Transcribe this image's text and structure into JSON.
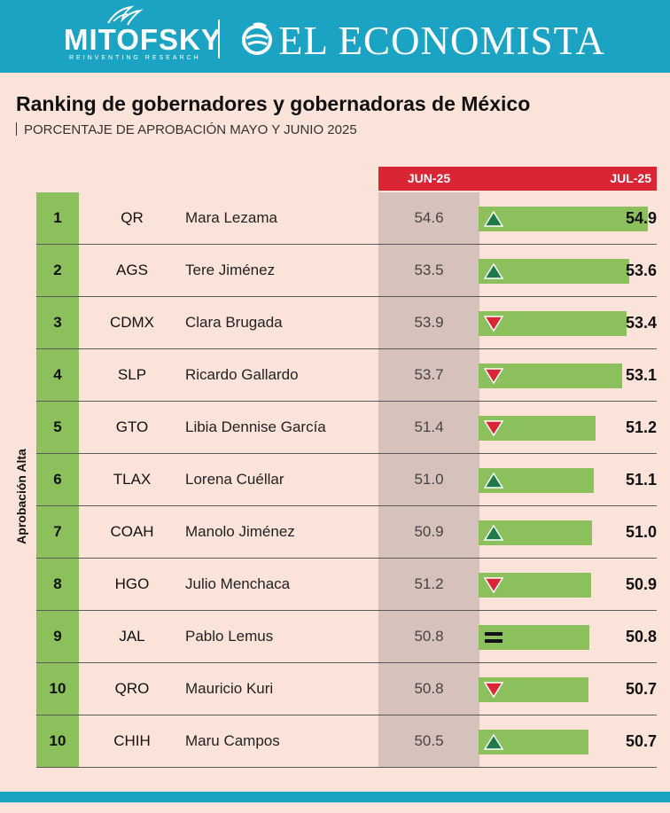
{
  "header": {
    "brand1": "MITOFSKY",
    "brand1_tagline": "REINVENTING RESEARCH",
    "brand2": "EL ECONOMISTA",
    "background": "#1aa3c2"
  },
  "title": "Ranking de gobernadores y gobernadoras de México",
  "subtitle": "PORCENTAJE DE APROBACIÓN MAYO Y JUNIO 2025",
  "side_label": "Aprobación Alta",
  "colors": {
    "accent_red": "#d92534",
    "bar_green": "#8cc05c",
    "up": "#1f7a4a",
    "down": "#d92534"
  },
  "chart_data": {
    "type": "bar",
    "title": "Ranking de gobernadores y gobernadoras de México",
    "subtitle": "PORCENTAJE DE APROBACIÓN MAYO Y JUNIO 2025",
    "series_labels": [
      "JUN-25",
      "JUL-25"
    ],
    "xlim": [
      0,
      54.9
    ],
    "rows": [
      {
        "rank": "1",
        "state": "QR",
        "name": "Mara Lezama",
        "jun": "54.6",
        "jul": "54.9",
        "value": 54.9,
        "trend": "up"
      },
      {
        "rank": "2",
        "state": "AGS",
        "name": "Tere Jiménez",
        "jun": "53.5",
        "jul": "53.6",
        "value": 53.6,
        "trend": "up"
      },
      {
        "rank": "3",
        "state": "CDMX",
        "name": "Clara Brugada",
        "jun": "53.9",
        "jul": "53.4",
        "value": 53.4,
        "trend": "down"
      },
      {
        "rank": "4",
        "state": "SLP",
        "name": "Ricardo Gallardo",
        "jun": "53.7",
        "jul": "53.1",
        "value": 53.1,
        "trend": "down"
      },
      {
        "rank": "5",
        "state": "GTO",
        "name": "Libia Dennise García",
        "jun": "51.4",
        "jul": "51.2",
        "value": 51.2,
        "trend": "down"
      },
      {
        "rank": "6",
        "state": "TLAX",
        "name": "Lorena Cuéllar",
        "jun": "51.0",
        "jul": "51.1",
        "value": 51.1,
        "trend": "up"
      },
      {
        "rank": "7",
        "state": "COAH",
        "name": "Manolo Jiménez",
        "jun": "50.9",
        "jul": "51.0",
        "value": 51.0,
        "trend": "up"
      },
      {
        "rank": "8",
        "state": "HGO",
        "name": "Julio Menchaca",
        "jun": "51.2",
        "jul": "50.9",
        "value": 50.9,
        "trend": "down"
      },
      {
        "rank": "9",
        "state": "JAL",
        "name": "Pablo Lemus",
        "jun": "50.8",
        "jul": "50.8",
        "value": 50.8,
        "trend": "equal"
      },
      {
        "rank": "10",
        "state": "QRO",
        "name": "Mauricio Kuri",
        "jun": "50.8",
        "jul": "50.7",
        "value": 50.7,
        "trend": "down"
      },
      {
        "rank": "10",
        "state": "CHIH",
        "name": "Maru Campos",
        "jun": "50.5",
        "jul": "50.7",
        "value": 50.7,
        "trend": "up"
      }
    ]
  }
}
